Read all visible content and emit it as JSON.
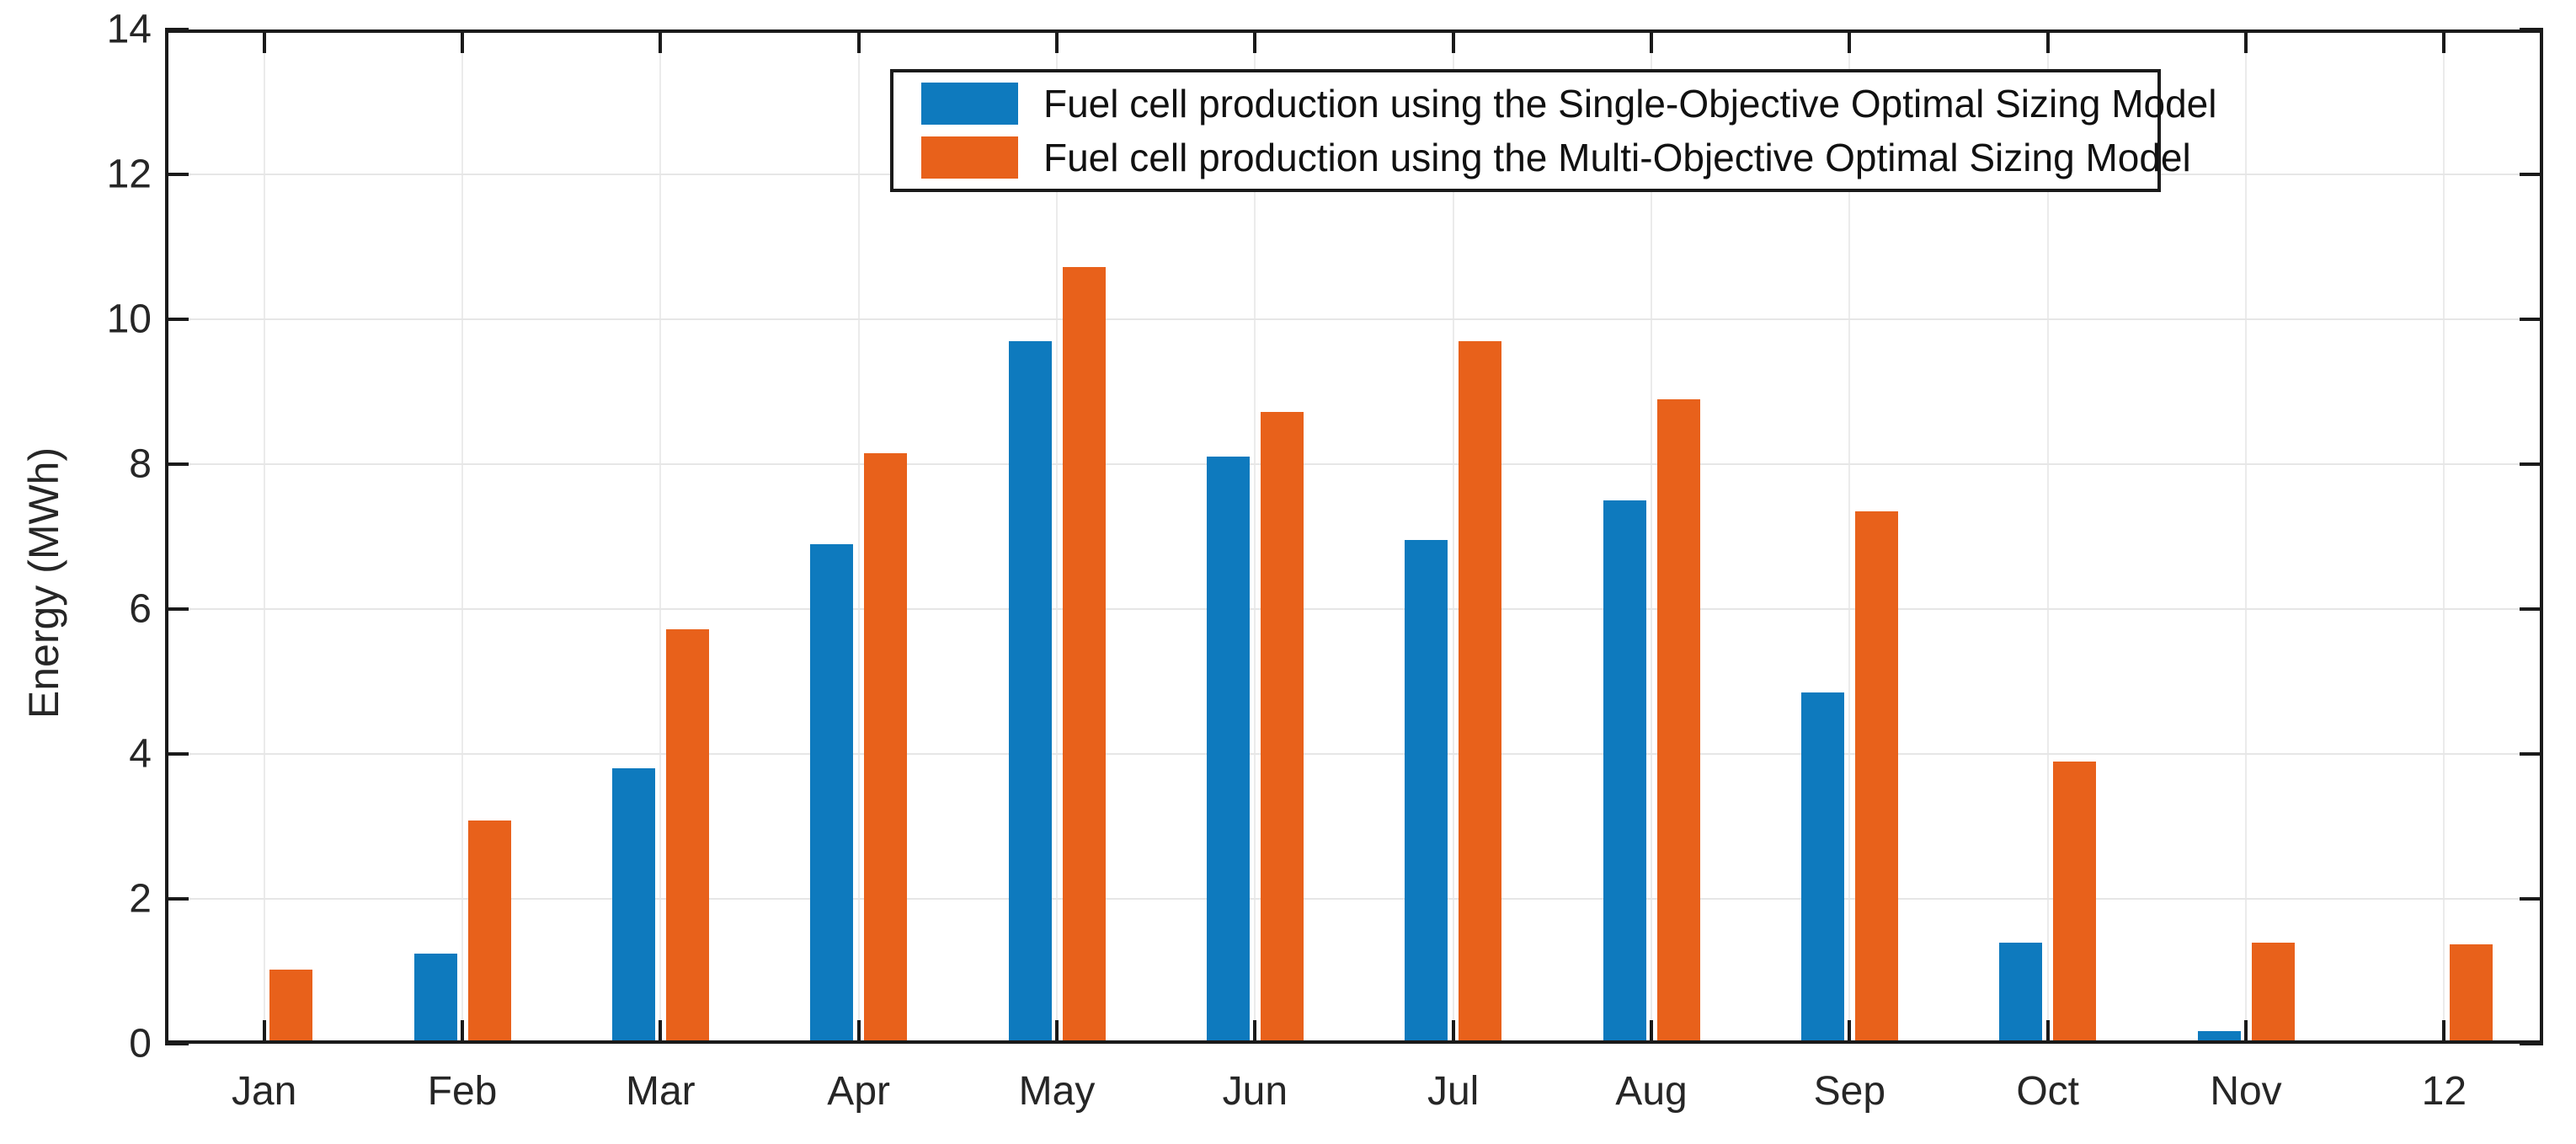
{
  "figure": {
    "background": "#ffffff",
    "axis_color": "#1a1a1a",
    "grid_color": "#e6e6e6",
    "text_color": "#262626"
  },
  "chart_data": {
    "type": "bar",
    "title": "",
    "xlabel": "",
    "ylabel": "Energy (MWh)",
    "categories": [
      "Jan",
      "Feb",
      "Mar",
      "Apr",
      "May",
      "Jun",
      "Jul",
      "Aug",
      "Sep",
      "Oct",
      "Nov",
      "12"
    ],
    "series": [
      {
        "name": "Fuel cell production using the Single-Objective Optimal Sizing Model",
        "color": "#0e7abe",
        "values": [
          0,
          1.25,
          3.8,
          6.9,
          9.7,
          8.1,
          6.95,
          7.5,
          4.85,
          1.4,
          0.18,
          0
        ]
      },
      {
        "name": "Fuel cell production using the Multi-Objective Optimal Sizing Model",
        "color": "#e8611b",
        "values": [
          1.02,
          3.08,
          5.72,
          8.15,
          10.72,
          8.72,
          9.7,
          8.9,
          7.35,
          3.9,
          1.4,
          1.37
        ]
      }
    ],
    "ylim": [
      0,
      14
    ],
    "yticks": [
      0,
      2,
      4,
      6,
      8,
      10,
      12,
      14
    ],
    "grid": true,
    "legend_position": "top-center"
  }
}
